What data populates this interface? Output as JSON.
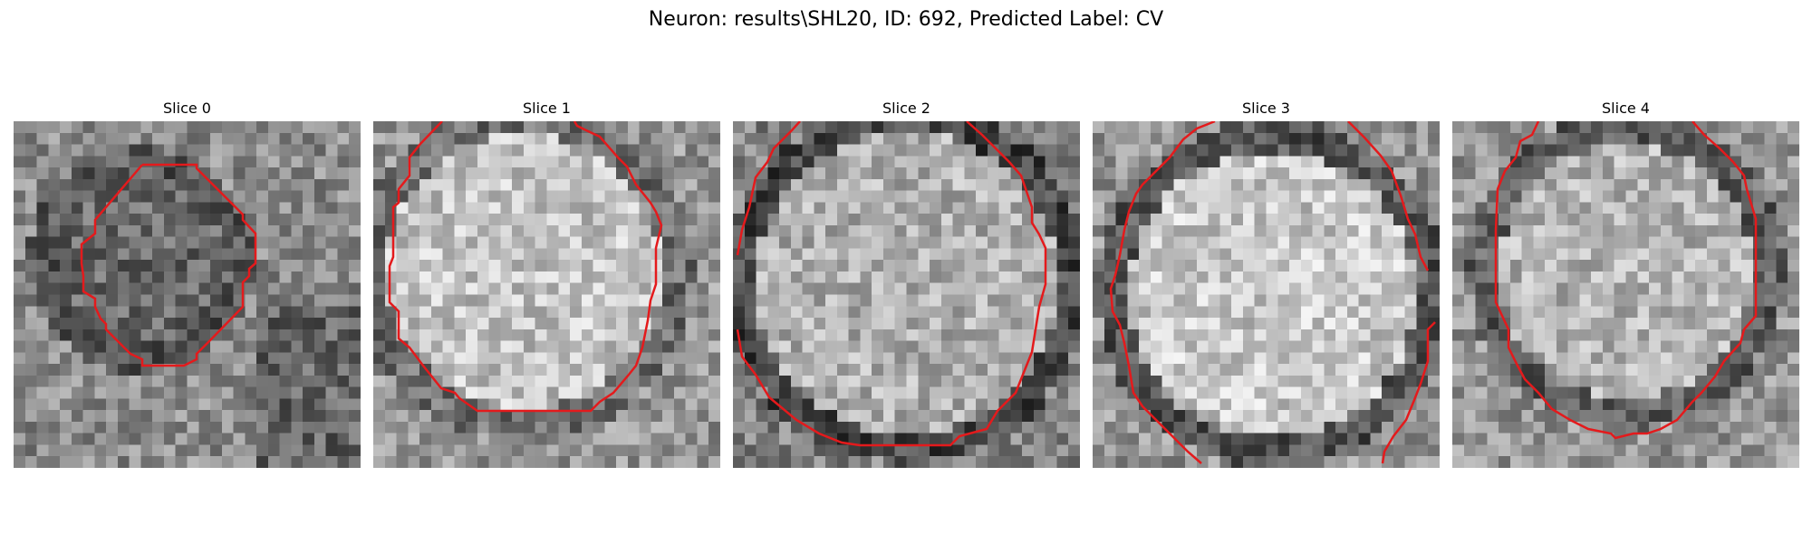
{
  "figure": {
    "title": "Neuron: results\\SHL20, ID: 692, Predicted Label: CV"
  },
  "colors": {
    "contour": "#e41a1c",
    "background": "#ffffff"
  },
  "slices": [
    {
      "label": "Slice 0"
    },
    {
      "label": "Slice 1"
    },
    {
      "label": "Slice 2"
    },
    {
      "label": "Slice 3"
    },
    {
      "label": "Slice 4"
    }
  ]
}
